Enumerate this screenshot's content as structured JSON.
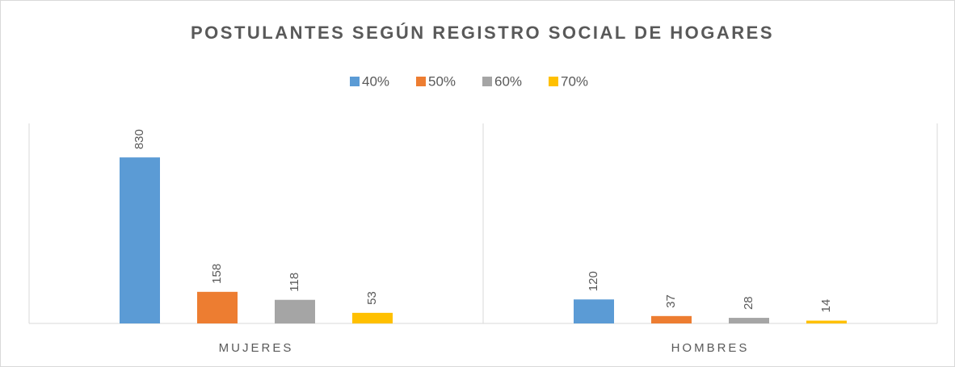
{
  "chart_data": {
    "type": "bar",
    "title": "POSTULANTES SEGÚN REGISTRO SOCIAL DE HOGARES",
    "categories": [
      "MUJERES",
      "HOMBRES"
    ],
    "series": [
      {
        "name": "40%",
        "color": "#5b9bd5",
        "values": [
          830,
          120
        ]
      },
      {
        "name": "50%",
        "color": "#ed7d31",
        "values": [
          158,
          37
        ]
      },
      {
        "name": "60%",
        "color": "#a5a5a5",
        "values": [
          118,
          28
        ]
      },
      {
        "name": "70%",
        "color": "#ffc000",
        "values": [
          53,
          14
        ]
      }
    ],
    "ylim": [
      0,
      1000
    ],
    "legend": "top"
  }
}
